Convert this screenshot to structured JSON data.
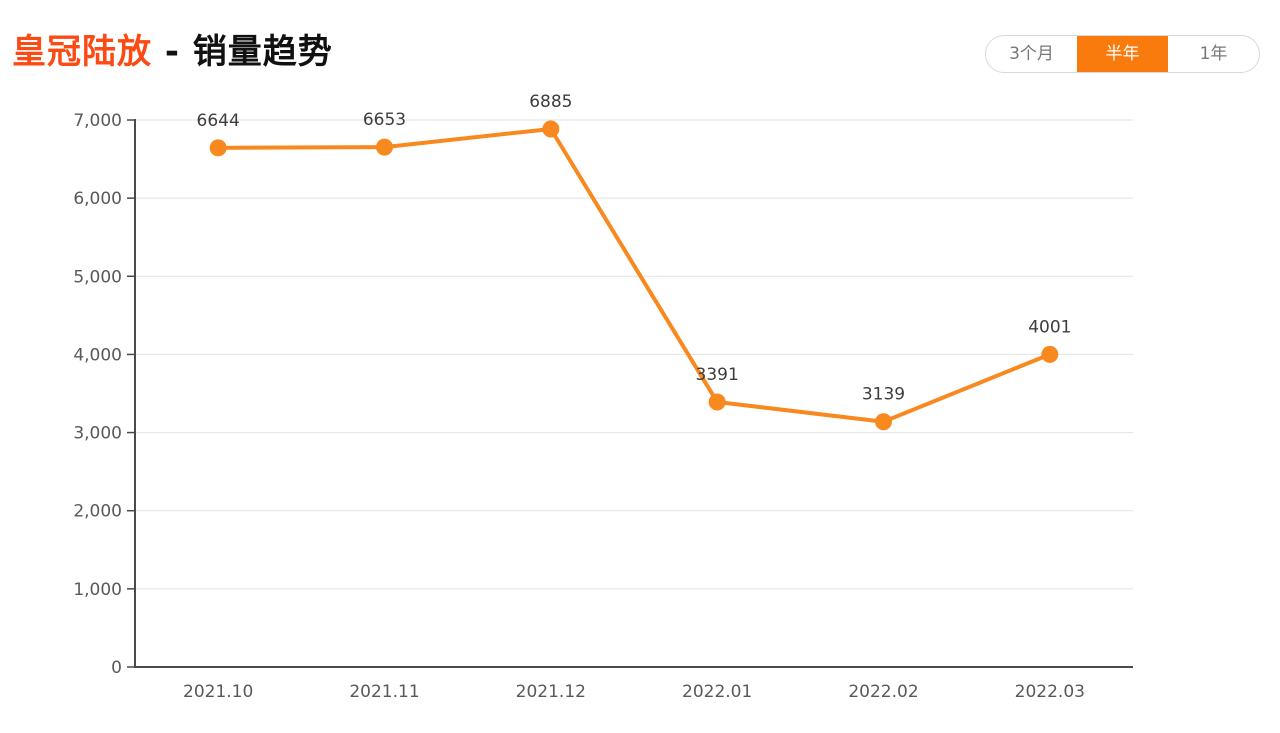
{
  "header": {
    "title_primary": "皇冠陆放",
    "title_separator": " - ",
    "title_secondary": "销量趋势"
  },
  "tabs": [
    {
      "label": "3个月",
      "active": false
    },
    {
      "label": "半年",
      "active": true
    },
    {
      "label": "1年",
      "active": false
    }
  ],
  "colors": {
    "title_accent": "#fb4a14",
    "title_text": "#111111",
    "series_line": "#f8891f",
    "marker_fill": "#f8891f",
    "tab_active_bg": "#f97b0e",
    "tab_active_text": "#ffffff",
    "tab_inactive_text": "#777777",
    "tab_border": "#d9d9d9",
    "axis_line": "#4a4a4a",
    "grid_line": "#e2e2e2",
    "axis_label": "#595959",
    "data_label": "#3d3d3d"
  },
  "chart_data": {
    "type": "line",
    "title": "皇冠陆放 - 销量趋势",
    "categories": [
      "2021.10",
      "2021.11",
      "2021.12",
      "2022.01",
      "2022.02",
      "2022.03"
    ],
    "series": [
      {
        "name": "销量",
        "values": [
          6644,
          6653,
          6885,
          3391,
          3139,
          4001
        ]
      }
    ],
    "xlabel": "",
    "ylabel": "",
    "ylim": [
      0,
      7000
    ],
    "y_ticks": [
      0,
      1000,
      2000,
      3000,
      4000,
      5000,
      6000,
      7000
    ],
    "y_tick_labels": [
      "0",
      "1,000",
      "2,000",
      "3,000",
      "4,000",
      "5,000",
      "6,000",
      "7,000"
    ],
    "grid": true,
    "legend": false,
    "marker": "circle",
    "data_labels": true
  }
}
